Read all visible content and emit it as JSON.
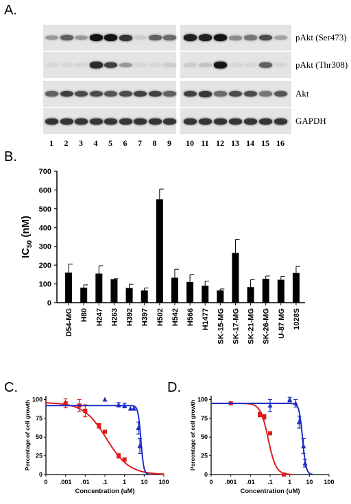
{
  "figure": {
    "panels": {
      "A": {
        "letter": "A.",
        "blot_labels": [
          "pAkt (Ser473)",
          "pAkt (Thr308)",
          "Akt",
          "GAPDH"
        ],
        "lanes": [
          "1",
          "2",
          "3",
          "4",
          "5",
          "6",
          "7",
          "8",
          "9",
          "10",
          "11",
          "12",
          "13",
          "14",
          "15",
          "16"
        ],
        "band_intensity": {
          "pAkt (Ser473)": [
            0.35,
            0.6,
            0.35,
            0.95,
            0.95,
            0.8,
            0.1,
            0.6,
            0.55,
            0.9,
            0.9,
            0.95,
            0.4,
            0.5,
            0.7,
            0.3
          ],
          "pAkt (Thr308)": [
            0.05,
            0.05,
            0.05,
            0.85,
            0.75,
            0.35,
            0.05,
            0.05,
            0.1,
            0.1,
            0.15,
            0.95,
            0.05,
            0.05,
            0.6,
            0.05
          ],
          "Akt": [
            0.6,
            0.75,
            0.7,
            0.7,
            0.65,
            0.7,
            0.75,
            0.75,
            0.6,
            0.75,
            0.8,
            0.55,
            0.7,
            0.7,
            0.5,
            0.65
          ],
          "GAPDH": [
            0.8,
            0.8,
            0.8,
            0.8,
            0.8,
            0.8,
            0.8,
            0.8,
            0.8,
            0.8,
            0.8,
            0.8,
            0.8,
            0.8,
            0.8,
            0.8
          ]
        }
      },
      "B": {
        "letter": "B."
      },
      "C": {
        "letter": "C."
      },
      "D": {
        "letter": "D."
      }
    }
  },
  "chart_data": [
    {
      "panel": "B",
      "type": "bar",
      "ylabel": "IC50 (nM)",
      "ylabel_main": "IC",
      "ylabel_sub": "50",
      "ylabel_rest": " (nM)",
      "ylim": [
        0,
        700
      ],
      "yticks": [
        0,
        100,
        200,
        300,
        400,
        500,
        600,
        700
      ],
      "categories": [
        "D54-MG",
        "H80",
        "H247",
        "H263",
        "H392",
        "H397",
        "H502",
        "H542",
        "H566",
        "H1477",
        "SK-15-MG",
        "SK-17-MG",
        "SK-21-MG",
        "SK-26-MG",
        "U-87 MG",
        "1028S"
      ],
      "values": [
        160,
        80,
        155,
        125,
        78,
        65,
        550,
        133,
        110,
        90,
        65,
        265,
        83,
        127,
        122,
        158
      ],
      "errors": [
        45,
        15,
        42,
        3,
        20,
        13,
        55,
        45,
        40,
        25,
        8,
        72,
        40,
        15,
        18,
        35
      ]
    },
    {
      "panel": "C",
      "type": "scatter",
      "xlabel": "Concentration (uM)",
      "ylabel": "Percentage of cell growth",
      "xticks": [
        "0",
        ".001",
        ".01",
        ".1",
        "1",
        "10",
        "100"
      ],
      "yticks": [
        0,
        25,
        50,
        75,
        100
      ],
      "ylim": [
        0,
        105
      ],
      "series": [
        {
          "color": "#e01b1b",
          "marker": "square",
          "x": [
            0.001,
            0.005,
            0.01,
            0.05,
            0.1,
            0.5,
            1
          ],
          "y": [
            95,
            92,
            85,
            65,
            57,
            25,
            20
          ],
          "err": [
            6,
            8,
            8,
            3,
            2,
            3,
            2
          ],
          "curve": {
            "top": 96,
            "bottom": 0,
            "ic50": 0.12,
            "hill": 0.75
          }
        },
        {
          "color": "#1c2ec4",
          "marker": "triangle",
          "x": [
            0.1,
            0.5,
            1,
            2,
            3,
            5,
            6
          ],
          "y": [
            100,
            93,
            92,
            88,
            88,
            62,
            38
          ],
          "err": [
            0,
            3,
            3,
            0,
            0,
            8,
            10
          ],
          "curve": {
            "top": 92,
            "bottom": 0,
            "ic50": 6.8,
            "hill": 6
          }
        }
      ]
    },
    {
      "panel": "D",
      "type": "scatter",
      "xlabel": "Concentration (uM)",
      "ylabel": "Percentage of cell growth",
      "xticks": [
        "0",
        ".001",
        ".01",
        ".1",
        "1",
        "10",
        "100"
      ],
      "yticks": [
        0,
        25,
        50,
        75,
        100
      ],
      "ylim": [
        0,
        105
      ],
      "series": [
        {
          "color": "#e01b1b",
          "marker": "square",
          "x": [
            0.001,
            0.03,
            0.05,
            0.1,
            0.5
          ],
          "y": [
            95,
            80,
            77,
            55,
            0
          ],
          "err": [
            1,
            3,
            3,
            2,
            0
          ],
          "curve": {
            "top": 95,
            "bottom": 0,
            "ic50": 0.08,
            "hill": 2.2
          }
        },
        {
          "color": "#1c2ec4",
          "marker": "triangle",
          "x": [
            0.1,
            1,
            2,
            3,
            5,
            6
          ],
          "y": [
            92,
            100,
            95,
            70,
            38,
            15
          ],
          "err": [
            8,
            3,
            5,
            8,
            10,
            5
          ],
          "curve": {
            "top": 95,
            "bottom": 0,
            "ic50": 4.5,
            "hill": 5
          }
        }
      ]
    }
  ]
}
